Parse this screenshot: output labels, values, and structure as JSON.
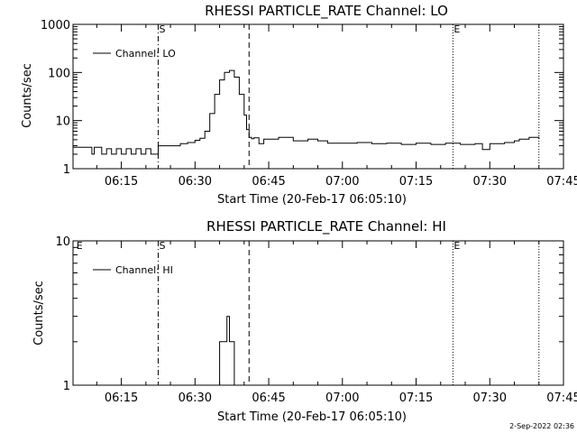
{
  "colors": {
    "background": "#ffffff",
    "foreground": "#000000"
  },
  "timestamp": "2-Sep-2022 02:36",
  "chart_data": [
    {
      "type": "line",
      "title": "RHESSI PARTICLE_RATE Channel: LO",
      "xlabel": "Start Time (20-Feb-17 06:05:10)",
      "ylabel": "Counts/sec",
      "legend": {
        "label": "Channel: LO",
        "placement": "top-left"
      },
      "yscale": "log",
      "ylim": [
        1,
        1000
      ],
      "xlim": [
        "06:05:10",
        "07:45:00"
      ],
      "x_ticks": [
        "06:15",
        "06:30",
        "06:45",
        "07:00",
        "07:15",
        "07:30",
        "07:45"
      ],
      "y_ticks": [
        {
          "label": "1",
          "value": 1
        },
        {
          "label": "10",
          "value": 10
        },
        {
          "label": "100",
          "value": 100
        },
        {
          "label": "1000",
          "value": 1000
        }
      ],
      "markers": [
        {
          "time": "06:22:30",
          "label": "S",
          "style": "dash-dot"
        },
        {
          "time": "06:41:00",
          "label": "",
          "style": "dashed"
        },
        {
          "time": "07:22:30",
          "label": "E",
          "style": "dotted"
        },
        {
          "time": "07:40:00",
          "label": "",
          "style": "dotted"
        }
      ],
      "series": [
        {
          "name": "Channel: LO",
          "x": [
            "06:05:10",
            "06:08:30",
            "06:09:00",
            "06:09:30",
            "06:10:00",
            "06:11:00",
            "06:12:00",
            "06:13:00",
            "06:14:00",
            "06:15:00",
            "06:16:00",
            "06:17:00",
            "06:18:00",
            "06:19:00",
            "06:20:00",
            "06:21:00",
            "06:22:00",
            "06:22:30",
            "06:25:00",
            "06:27:00",
            "06:28:30",
            "06:30:00",
            "06:31:00",
            "06:32:00",
            "06:33:00",
            "06:34:00",
            "06:35:00",
            "06:36:00",
            "06:37:00",
            "06:38:00",
            "06:39:00",
            "06:40:00",
            "06:40:30",
            "06:41:00",
            "06:41:30",
            "06:42:00",
            "06:43:00",
            "06:44:00",
            "06:45:00",
            "06:47:00",
            "06:50:00",
            "06:53:00",
            "06:55:00",
            "06:57:00",
            "07:00:00",
            "07:03:00",
            "07:06:00",
            "07:09:00",
            "07:12:00",
            "07:15:00",
            "07:18:00",
            "07:21:00",
            "07:24:00",
            "07:27:00",
            "07:28:30",
            "07:30:00",
            "07:33:00",
            "07:35:00",
            "07:36:00",
            "07:38:00",
            "07:40:00"
          ],
          "values": [
            2.8,
            2.8,
            2.0,
            2.8,
            2.8,
            2.0,
            2.6,
            2.0,
            2.6,
            2.0,
            2.6,
            2.0,
            2.6,
            2.0,
            2.6,
            2.0,
            2.0,
            3.0,
            3.0,
            3.3,
            3.5,
            3.9,
            4.3,
            6.0,
            14,
            35,
            70,
            100,
            110,
            80,
            35,
            13,
            6.5,
            4.5,
            4.2,
            4.4,
            3.3,
            4.1,
            4.1,
            4.5,
            3.8,
            4.1,
            3.8,
            3.4,
            3.4,
            3.5,
            3.3,
            3.4,
            3.2,
            3.4,
            3.2,
            3.4,
            3.2,
            3.3,
            2.5,
            3.3,
            3.5,
            3.8,
            4.1,
            4.5,
            4.1
          ]
        }
      ]
    },
    {
      "type": "line",
      "title": "RHESSI PARTICLE_RATE Channel: HI",
      "xlabel": "Start Time (20-Feb-17 06:05:10)",
      "ylabel": "Counts/sec",
      "legend": {
        "label": "Channel: HI",
        "placement": "top-left"
      },
      "yscale": "log",
      "ylim": [
        1,
        10
      ],
      "xlim": [
        "06:05:10",
        "07:45:00"
      ],
      "x_ticks": [
        "06:15",
        "06:30",
        "06:45",
        "07:00",
        "07:15",
        "07:30",
        "07:45"
      ],
      "y_ticks": [
        {
          "label": "1",
          "value": 1
        },
        {
          "label": "10",
          "value": 10
        }
      ],
      "markers": [
        {
          "time": "06:05:40",
          "label": "E",
          "style": "none"
        },
        {
          "time": "06:22:30",
          "label": "S",
          "style": "dash-dot"
        },
        {
          "time": "06:41:00",
          "label": "",
          "style": "dashed"
        },
        {
          "time": "07:22:30",
          "label": "E",
          "style": "dotted"
        },
        {
          "time": "07:40:00",
          "label": "",
          "style": "dotted"
        }
      ],
      "series": [
        {
          "name": "Channel: HI",
          "x": [
            "06:34:40",
            "06:35:00",
            "06:35:00",
            "06:36:00",
            "06:36:00",
            "06:36:30",
            "06:37:00",
            "06:37:30",
            "06:38:00",
            "06:38:10"
          ],
          "values": [
            1.0,
            1.0,
            2.0,
            2.0,
            2.0,
            3.0,
            2.0,
            2.0,
            1.0,
            1.0
          ]
        }
      ]
    }
  ]
}
